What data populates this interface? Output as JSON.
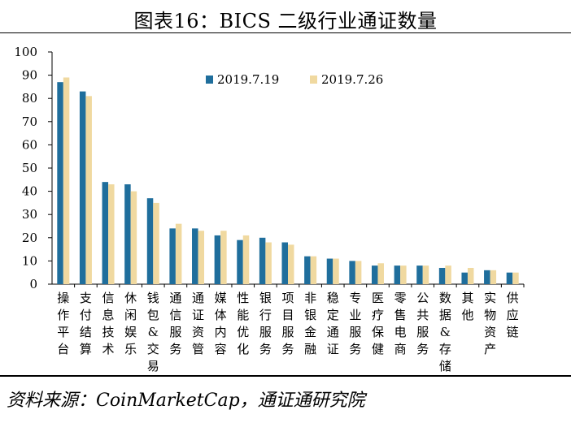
{
  "title": "图表16：BICS 二级行业通证数量",
  "source": "资料来源：CoinMarketCap，通证通研究院",
  "chart_data": {
    "type": "bar",
    "categories": [
      "操作平台",
      "支付结算",
      "信息技术",
      "休闲娱乐",
      "钱包&交易",
      "通信服务",
      "通证资管",
      "媒体内容",
      "性能优化",
      "银行服务",
      "项目服务",
      "非银金融",
      "稳定通证",
      "专业服务",
      "医疗保健",
      "零售电商",
      "公共服务",
      "数据&存储",
      "其他",
      "实物资产",
      "供应链"
    ],
    "series": [
      {
        "name": "2019.7.19",
        "color": "#1f6e9c",
        "values": [
          87,
          83,
          44,
          43,
          37,
          24,
          24,
          21,
          19,
          20,
          18,
          12,
          11,
          10,
          8,
          8,
          8,
          7,
          5,
          6,
          5
        ]
      },
      {
        "name": "2019.7.26",
        "color": "#f0d9a0",
        "values": [
          89,
          81,
          43,
          40,
          35,
          26,
          23,
          23,
          21,
          18,
          17,
          12,
          11,
          10,
          9,
          8,
          8,
          8,
          7,
          6,
          5
        ]
      }
    ],
    "ylim": [
      0,
      100
    ],
    "yticks": [
      0,
      10,
      20,
      30,
      40,
      50,
      60,
      70,
      80,
      90,
      100
    ],
    "grid": false,
    "legend_position": "top-center",
    "xlabel": "",
    "ylabel": ""
  }
}
